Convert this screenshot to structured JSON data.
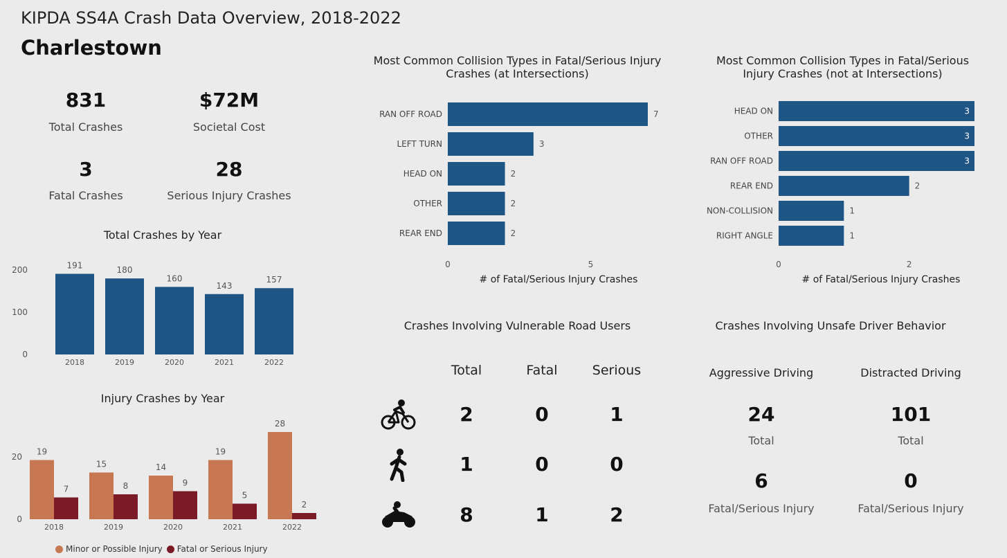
{
  "header": {
    "title": "KIPDA SS4A Crash Data Overview, 2018-2022",
    "subtitle": "Charlestown"
  },
  "kpis": {
    "total_crashes": {
      "value": "831",
      "label": "Total Crashes"
    },
    "societal_cost": {
      "value": "$72M",
      "label": "Societal Cost"
    },
    "fatal_crashes": {
      "value": "3",
      "label": "Fatal Crashes"
    },
    "serious_injury": {
      "value": "28",
      "label": "Serious Injury Crashes"
    }
  },
  "vulnerable": {
    "title": "Crashes Involving Vulnerable Road Users",
    "headers": [
      "Total",
      "Fatal",
      "Serious"
    ],
    "rows": [
      {
        "icon": "bicycle-icon",
        "values": [
          "2",
          "0",
          "1"
        ]
      },
      {
        "icon": "pedestrian-icon",
        "values": [
          "1",
          "0",
          "0"
        ]
      },
      {
        "icon": "motorcycle-icon",
        "values": [
          "8",
          "1",
          "2"
        ]
      }
    ]
  },
  "driver_behavior": {
    "title": "Crashes Involving Unsafe Driver Behavior",
    "aggressive": {
      "heading": "Aggressive Driving",
      "total": "24",
      "total_label": "Total",
      "fsi": "6",
      "fsi_label": "Fatal/Serious Injury"
    },
    "distracted": {
      "heading": "Distracted Driving",
      "total": "101",
      "total_label": "Total",
      "fsi": "0",
      "fsi_label": "Fatal/Serious Injury"
    }
  },
  "colors": {
    "blue": "#1f5584",
    "orange": "#c87753",
    "maroon": "#7b1b28"
  },
  "chart_data": [
    {
      "id": "total-by-year",
      "type": "bar",
      "title": "Total Crashes by Year",
      "categories": [
        "2018",
        "2019",
        "2020",
        "2021",
        "2022"
      ],
      "values": [
        191,
        180,
        160,
        143,
        157
      ],
      "yticks": [
        "0",
        "100",
        "200"
      ],
      "ylim": [
        0,
        200
      ]
    },
    {
      "id": "injury-by-year",
      "type": "bar",
      "title": "Injury Crashes by Year",
      "categories": [
        "2018",
        "2019",
        "2020",
        "2021",
        "2022"
      ],
      "series": [
        {
          "name": "Minor or Possible Injury",
          "values": [
            19,
            15,
            14,
            19,
            28
          ]
        },
        {
          "name": "Fatal or Serious Injury",
          "values": [
            7,
            8,
            9,
            5,
            2
          ]
        }
      ],
      "yticks": [
        "0",
        "20"
      ],
      "ylim": [
        0,
        28
      ],
      "legend": "bottom"
    },
    {
      "id": "collision-intersections",
      "type": "bar",
      "orientation": "horizontal",
      "title": "Most Common Collision Types in Fatal/Serious Injury Crashes (at Intersections)",
      "categories": [
        "RAN OFF ROAD",
        "LEFT TURN",
        "HEAD ON",
        "OTHER",
        "REAR END"
      ],
      "values": [
        7,
        3,
        2,
        2,
        2
      ],
      "xticks": [
        "0",
        "5"
      ],
      "xlabel": "# of Fatal/Serious Injury Crashes",
      "xlim": [
        0,
        7
      ]
    },
    {
      "id": "collision-non-intersections",
      "type": "bar",
      "orientation": "horizontal",
      "title": "Most Common Collision Types in Fatal/Serious Injury Crashes (not at Intersections)",
      "categories": [
        "HEAD ON",
        "OTHER",
        "RAN OFF ROAD",
        "REAR END",
        "NON-COLLISION",
        "RIGHT ANGLE"
      ],
      "values": [
        3,
        3,
        3,
        2,
        1,
        1
      ],
      "xticks": [
        "0",
        "2"
      ],
      "xlabel": "# of Fatal/Serious Injury Crashes",
      "xlim": [
        0,
        3
      ]
    }
  ]
}
